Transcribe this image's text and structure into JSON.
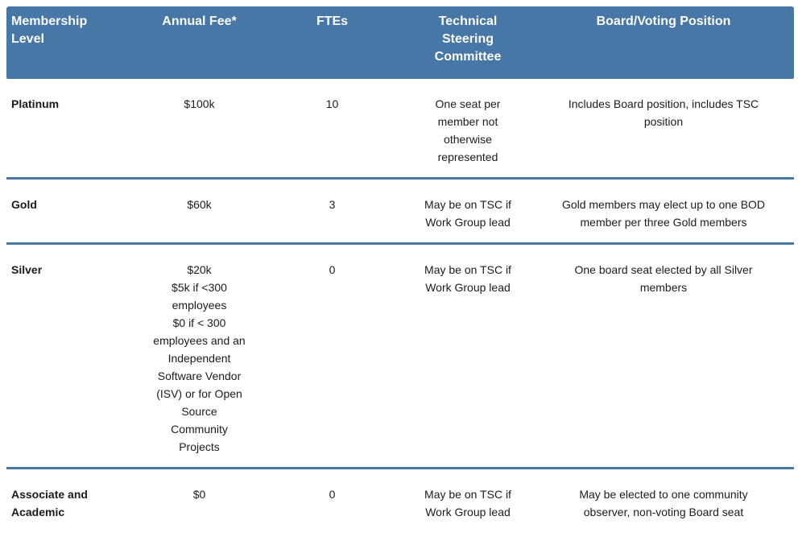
{
  "theme": {
    "header_bg": "#4677a6",
    "header_text": "#ffffff",
    "divider": "#4677a6",
    "body_text": "#1c1c1c",
    "background": "#ffffff"
  },
  "table": {
    "columns": [
      {
        "label": "Membership\nLevel"
      },
      {
        "label": "Annual Fee*"
      },
      {
        "label": "FTEs"
      },
      {
        "label": "Technical\nSteering\nCommittee"
      },
      {
        "label": "Board/Voting Position"
      }
    ],
    "rows": [
      {
        "level": "Platinum",
        "fee": "$100k",
        "ftes": "10",
        "tsc": "One seat per\nmember not\notherwise\nrepresented",
        "board": "Includes Board position, includes TSC\nposition"
      },
      {
        "level": "Gold",
        "fee": "$60k",
        "ftes": "3",
        "tsc": "May be on TSC if\nWork Group lead",
        "board": "Gold members may elect up to one BOD\nmember per three Gold members"
      },
      {
        "level": "Silver",
        "fee": "$20k\n$5k if <300\nemployees\n$0 if < 300\nemployees and an\nIndependent\nSoftware Vendor\n(ISV) or for Open\nSource\nCommunity\nProjects",
        "ftes": "0",
        "tsc": "May be on TSC if\nWork Group lead",
        "board": "One board seat elected by all Silver\nmembers"
      },
      {
        "level": "Associate and\nAcademic",
        "fee": "$0",
        "ftes": "0",
        "tsc": "May be on TSC if\nWork Group lead",
        "board": "May be elected to one community\nobserver, non-voting Board seat"
      }
    ]
  }
}
